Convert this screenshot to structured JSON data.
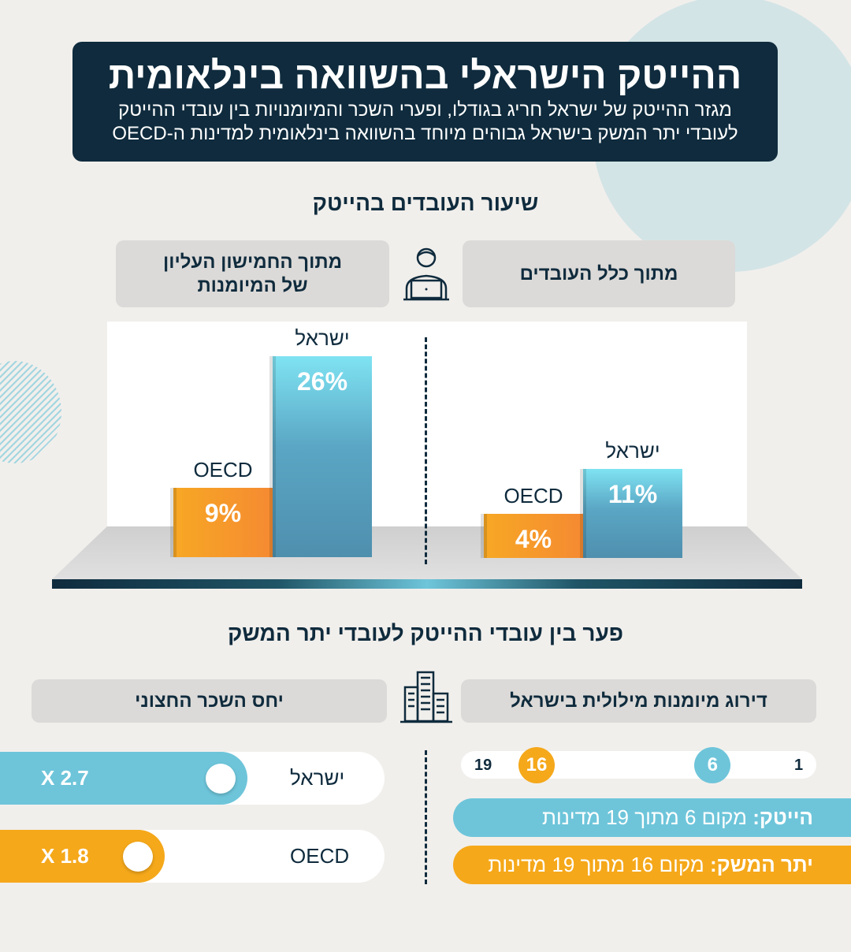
{
  "header": {
    "title": "ההייטק הישראלי בהשוואה בינלאומית",
    "subtitle_line1": "מגזר ההייטק של ישראל חריג בגודלו, ופערי השכר והמיומנויות בין עובדי ההייטק",
    "subtitle_line2": "לעובדי יתר המשק בישראל גבוהים מיוחד בהשוואה בינלאומית למדינות ה-OECD"
  },
  "section1": {
    "title": "שיעור העובדים בהייטק",
    "box_left_line1": "מתוך החמישון העליון",
    "box_left_line2": "של המיומנות",
    "box_right": "מתוך כלל העובדים"
  },
  "chart_data": [
    {
      "type": "bar",
      "title": "מתוך החמישון העליון של המיומנות",
      "categories": [
        "OECD",
        "ישראל"
      ],
      "values": [
        9,
        26
      ],
      "labels": [
        "9%",
        "26%"
      ],
      "unit": "%"
    },
    {
      "type": "bar",
      "title": "מתוך כלל העובדים",
      "categories": [
        "OECD",
        "ישראל"
      ],
      "values": [
        4,
        11
      ],
      "labels": [
        "4%",
        "11%"
      ],
      "unit": "%"
    }
  ],
  "section2": {
    "title": "פער בין עובדי ההייטק לעובדי יתר המשק",
    "box_left": "יחס השכר החצוני",
    "box_right": "דירוג מיומנות מילולית בישראל"
  },
  "wage_ratio": [
    {
      "name": "ישראל",
      "label": "X 2.7",
      "value": 2.7,
      "color": "#6ec5da"
    },
    {
      "name": "OECD",
      "label": "X 1.8",
      "value": 1.8,
      "color": "#f5a81a"
    }
  ],
  "ranking": {
    "min_label": "1",
    "max_label": "19",
    "min": 1,
    "max": 19,
    "markers": [
      {
        "value": 6,
        "label": "6",
        "color": "#6ec5da"
      },
      {
        "value": 16,
        "label": "16",
        "color": "#f5a81a"
      }
    ],
    "hitech_bold": "הייטק:",
    "hitech_text": " מקום 6 מתוך 19 מדינות",
    "rest_bold": "יתר המשק:",
    "rest_text": " מקום 16 מתוך 19 מדינות"
  },
  "colors": {
    "dark": "#0f2b3d",
    "blue": "#6ec5da",
    "orange": "#f5a81a"
  }
}
